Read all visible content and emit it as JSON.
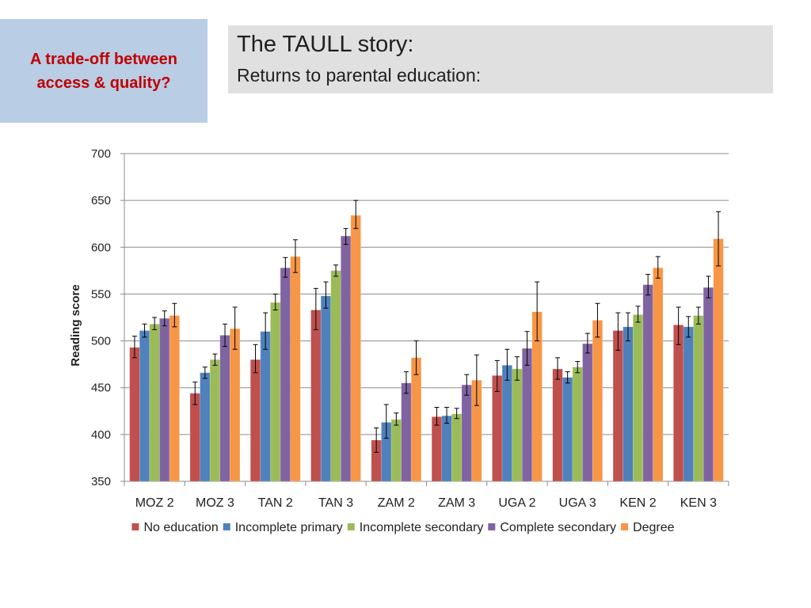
{
  "side_box": {
    "text": "A trade-off between access & quality?"
  },
  "header": {
    "title": "The TAULL story:",
    "subtitle": "Returns to parental education:"
  },
  "colors": {
    "No education": "#c0504d",
    "Incomplete primary": "#4f81bd",
    "Incomplete secondary": "#9bbb59",
    "Complete secondary": "#8064a2",
    "Degree": "#f79646"
  },
  "chart_data": {
    "type": "bar",
    "title": "",
    "xlabel": "",
    "ylabel": "Reading score",
    "ylim": [
      350,
      700
    ],
    "yticks": [
      350,
      400,
      450,
      500,
      550,
      600,
      650,
      700
    ],
    "grid": true,
    "legend_position": "bottom",
    "categories": [
      "MOZ 2",
      "MOZ 3",
      "TAN 2",
      "TAN 3",
      "ZAM 2",
      "ZAM 3",
      "UGA 2",
      "UGA 3",
      "KEN 2",
      "KEN 3"
    ],
    "series": [
      {
        "name": "No education",
        "values": [
          493,
          444,
          480,
          533,
          394,
          419,
          463,
          470,
          511,
          517
        ],
        "err_low": [
          482,
          432,
          466,
          512,
          381,
          410,
          446,
          459,
          490,
          496
        ],
        "err_high": [
          505,
          456,
          496,
          556,
          407,
          429,
          479,
          482,
          530,
          536
        ]
      },
      {
        "name": "Incomplete primary",
        "values": [
          511,
          466,
          510,
          548,
          413,
          420,
          474,
          461,
          515,
          515
        ],
        "err_low": [
          504,
          460,
          491,
          535,
          396,
          412,
          458,
          455,
          500,
          504
        ],
        "err_high": [
          518,
          472,
          530,
          563,
          432,
          429,
          491,
          467,
          530,
          526
        ]
      },
      {
        "name": "Incomplete secondary",
        "values": [
          518,
          480,
          541,
          575,
          416,
          422,
          470,
          472,
          528,
          527
        ],
        "err_low": [
          512,
          474,
          533,
          569,
          410,
          417,
          458,
          466,
          520,
          518
        ],
        "err_high": [
          525,
          486,
          550,
          581,
          423,
          428,
          483,
          478,
          537,
          536
        ]
      },
      {
        "name": "Complete secondary",
        "values": [
          524,
          506,
          578,
          612,
          455,
          453,
          492,
          497,
          560,
          557
        ],
        "err_low": [
          516,
          494,
          568,
          603,
          444,
          442,
          474,
          487,
          549,
          546
        ],
        "err_high": [
          532,
          518,
          589,
          620,
          467,
          464,
          510,
          508,
          571,
          569
        ]
      },
      {
        "name": "Degree",
        "values": [
          527,
          513,
          590,
          634,
          482,
          458,
          531,
          522,
          578,
          609
        ],
        "err_low": [
          515,
          491,
          573,
          620,
          464,
          431,
          500,
          504,
          567,
          580
        ],
        "err_high": [
          540,
          536,
          608,
          650,
          500,
          485,
          563,
          540,
          590,
          638
        ]
      }
    ]
  }
}
